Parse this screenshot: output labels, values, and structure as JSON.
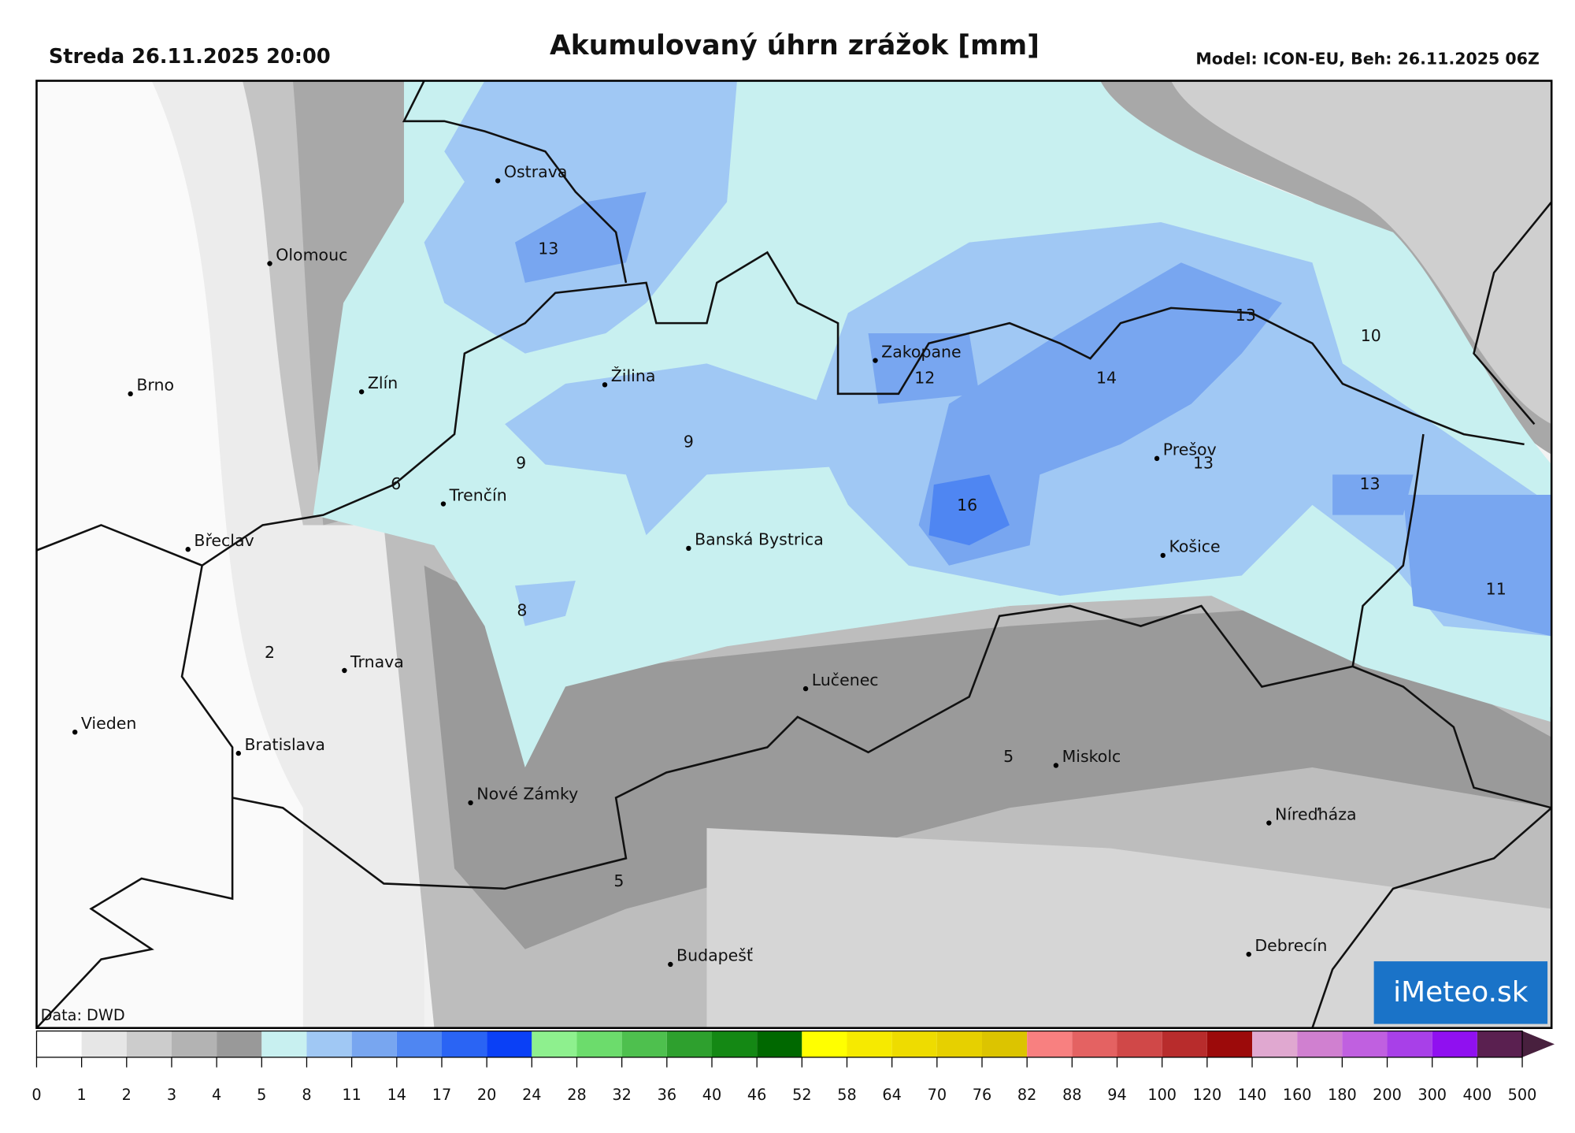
{
  "header": {
    "left": "Streda 26.11.2025 20:00",
    "title": "Akumulovaný úhrn zrážok [mm]",
    "right": "Model: ICON-EU, Beh: 26.11.2025 06Z"
  },
  "cities": [
    "Ostrava",
    "Olomouc",
    "Brno",
    "Zlín",
    "Žilina",
    "Zakopane",
    "Prešov",
    "Trenčín",
    "Břeclav",
    "Banská Bystrica",
    "Košice",
    "Trnava",
    "Lučenec",
    "Vieden",
    "Bratislava",
    "Miskolc",
    "Nové Zámky",
    "Níreďháza",
    "Debrecín",
    "Budapešť"
  ],
  "map_values": [
    13,
    12,
    14,
    13,
    10,
    9,
    9,
    6,
    16,
    13,
    13,
    11,
    8,
    2,
    5,
    5
  ],
  "colorbar": {
    "ticks": [
      0,
      1,
      2,
      3,
      4,
      5,
      8,
      11,
      14,
      17,
      20,
      24,
      28,
      32,
      36,
      40,
      46,
      52,
      58,
      64,
      70,
      76,
      82,
      88,
      94,
      100,
      120,
      140,
      160,
      180,
      200,
      300,
      400,
      500
    ],
    "colors": [
      "#ffffff",
      "#e6e6e6",
      "#cccccc",
      "#b3b3b3",
      "#999999",
      "#c8f0f0",
      "#a0c8f4",
      "#78a6f0",
      "#4f86f2",
      "#2a64f4",
      "#0a40f6",
      "#8ef08e",
      "#6cdc6c",
      "#4ec04e",
      "#2ea02e",
      "#148814",
      "#006800",
      "#ffff00",
      "#f6ea00",
      "#eedc00",
      "#e6d000",
      "#dcc400",
      "#f88080",
      "#e46262",
      "#d04848",
      "#b82c2c",
      "#9c0a0a",
      "#e0a8d0",
      "#d080d0",
      "#c060e0",
      "#a840e8",
      "#9010f0",
      "#5a2050",
      "#48203e",
      "#222222"
    ]
  },
  "source": "Data: DWD",
  "logo": "iMeteo.sk"
}
